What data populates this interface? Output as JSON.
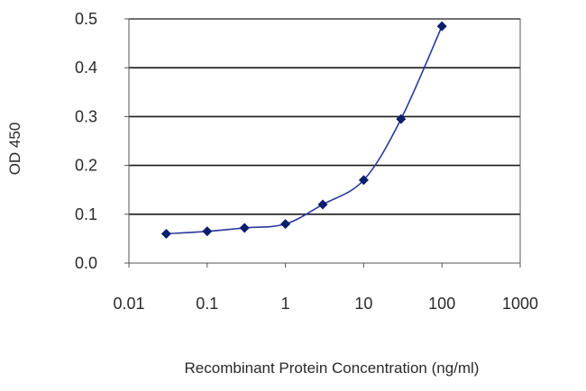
{
  "chart_data": {
    "type": "line",
    "title": "",
    "xlabel": "Recombinant Protein Concentration (ng/ml)",
    "ylabel": "OD 450",
    "x_scale": "log",
    "xlim": [
      0.01,
      1000
    ],
    "ylim": [
      0.0,
      0.5
    ],
    "x_ticks": [
      "0.01",
      "0.1",
      "1",
      "10",
      "100",
      "1000"
    ],
    "x_tick_values": [
      0.01,
      0.1,
      1,
      10,
      100,
      1000
    ],
    "y_ticks": [
      "0.0",
      "0.1",
      "0.2",
      "0.3",
      "0.4",
      "0.5"
    ],
    "y_tick_values": [
      0.0,
      0.1,
      0.2,
      0.3,
      0.4,
      0.5
    ],
    "grid": "horizontal",
    "legend": "none",
    "series": [
      {
        "x": [
          0.03,
          0.1,
          0.3,
          1,
          3,
          10,
          30,
          100
        ],
        "y": [
          0.06,
          0.065,
          0.072,
          0.08,
          0.12,
          0.17,
          0.295,
          0.485
        ],
        "marker": "diamond"
      }
    ],
    "colors": {
      "line": "#2a3a9c",
      "marker": "#0b1f6e",
      "grid": "#1a1a1a",
      "axis": "#555555"
    }
  }
}
